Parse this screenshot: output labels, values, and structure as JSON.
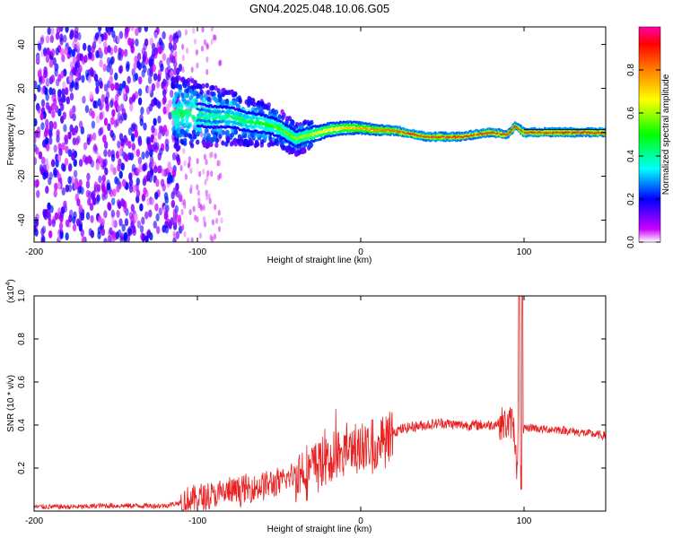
{
  "title": "GN04.2025.048.10.06.G05",
  "chart_data": [
    {
      "type": "heatmap",
      "xlabel": "Height of straight line (km)",
      "ylabel": "Frequency (Hz)",
      "xlim": [
        -200,
        150
      ],
      "ylim": [
        -50,
        48
      ],
      "x_ticks": [
        -200,
        -100,
        0,
        100
      ],
      "y_ticks": [
        -40,
        -20,
        0,
        20,
        40
      ],
      "colorbar": {
        "label": "Normalized spectral amplitude",
        "range": [
          0.0,
          1.0
        ],
        "ticks": [
          "0.0",
          "0.2",
          "0.4",
          "0.6",
          "0.8"
        ],
        "tick_values": [
          0.0,
          0.2,
          0.4,
          0.6,
          0.8
        ],
        "colors": [
          "#ffffff",
          "#cc00ff",
          "#0000ff",
          "#00ffff",
          "#00ff00",
          "#ffff00",
          "#ff8000",
          "#ff0000",
          "#ff00aa"
        ]
      },
      "ridge": {
        "x": [
          -110,
          -100,
          -90,
          -80,
          -70,
          -60,
          -50,
          -40,
          -30,
          -20,
          -10,
          0,
          10,
          20,
          40,
          60,
          80,
          90,
          95,
          100,
          120,
          150
        ],
        "y": [
          9,
          8,
          7,
          7,
          5,
          4,
          2,
          -3,
          -1,
          1,
          2,
          2,
          1,
          1,
          -2,
          -2,
          0,
          -1,
          3,
          0,
          0,
          0
        ]
      }
    },
    {
      "type": "line",
      "xlabel": "Height of straight line (km)",
      "ylabel": "SNR (10 * v/v)",
      "scale_label": "(x10",
      "scale_exponent": "4",
      "scale_close": ")",
      "xlim": [
        -200,
        150
      ],
      "ylim": [
        0,
        1.0
      ],
      "x_ticks": [
        -200,
        -100,
        0,
        100
      ],
      "y_ticks": [
        0.2,
        0.4,
        0.6,
        0.8,
        1.0
      ],
      "y_tick_labels": [
        "0.2",
        "0.4",
        "0.6",
        "0.8",
        "1.0"
      ],
      "color": "#e82020",
      "series": [
        {
          "x": [
            -200,
            -190,
            -180,
            -170,
            -160,
            -150,
            -140,
            -130,
            -120,
            -110,
            -100,
            -90,
            -80,
            -70,
            -60,
            -50,
            -45,
            -40,
            -35,
            -30,
            -25,
            -20,
            -15,
            -10,
            -5,
            0,
            5,
            10,
            15,
            20,
            30,
            40,
            50,
            60,
            70,
            80,
            85,
            90,
            93,
            95,
            96,
            97,
            98,
            100,
            105,
            110,
            120,
            130,
            140,
            150
          ],
          "y": [
            0.02,
            0.02,
            0.02,
            0.02,
            0.025,
            0.025,
            0.025,
            0.025,
            0.025,
            0.04,
            0.06,
            0.07,
            0.09,
            0.1,
            0.12,
            0.13,
            0.15,
            0.17,
            0.19,
            0.2,
            0.23,
            0.24,
            0.26,
            0.27,
            0.29,
            0.3,
            0.3,
            0.31,
            0.34,
            0.37,
            0.39,
            0.4,
            0.41,
            0.4,
            0.4,
            0.4,
            0.41,
            0.4,
            0.42,
            0.3,
            0.15,
            1.0,
            0.1,
            0.38,
            0.39,
            0.38,
            0.38,
            0.37,
            0.36,
            0.35
          ]
        }
      ]
    }
  ]
}
